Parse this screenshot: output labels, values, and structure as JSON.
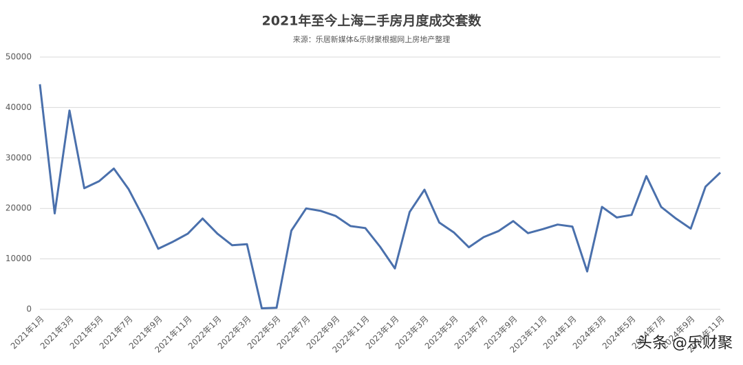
{
  "chart_data": {
    "type": "line",
    "title": "2021年至今上海二手房月度成交套数",
    "subtitle": "来源：乐居新媒体&乐财聚根据网上房地产整理",
    "watermark": "头条 @乐财聚",
    "categories": [
      "2021年1月",
      null,
      "2021年3月",
      null,
      "2021年5月",
      null,
      "2021年7月",
      null,
      "2021年9月",
      null,
      "2021年11月",
      null,
      "2022年1月",
      null,
      "2022年3月",
      null,
      "2022年5月",
      null,
      "2022年7月",
      null,
      "2022年9月",
      null,
      "2022年11月",
      null,
      "2023年1月",
      null,
      "2023年3月",
      null,
      "2023年5月",
      null,
      "2023年7月",
      null,
      "2023年9月",
      null,
      "2023年11月",
      null,
      "2024年1月",
      null,
      "2024年3月",
      null,
      "2024年5月",
      null,
      "2024年7月",
      null,
      "2024年9月",
      null,
      "2024年11月"
    ],
    "series": [
      {
        "name": "成交套数",
        "color": "#4a70ac",
        "values": [
          44600,
          19000,
          39400,
          24000,
          25400,
          27900,
          23800,
          18200,
          12000,
          13400,
          15000,
          18000,
          15000,
          12700,
          12900,
          200,
          300,
          15600,
          20000,
          19500,
          18500,
          16500,
          16100,
          12400,
          8100,
          19300,
          23700,
          17200,
          15200,
          12300,
          14300,
          15500,
          17500,
          15100,
          15900,
          16800,
          16400,
          7500,
          20300,
          18200,
          18700,
          26400,
          20300,
          18000,
          16000,
          24300,
          27100
        ]
      }
    ],
    "ylim": [
      0,
      50000
    ],
    "yticks": [
      0,
      10000,
      20000,
      30000,
      40000,
      50000
    ],
    "grid": true
  }
}
